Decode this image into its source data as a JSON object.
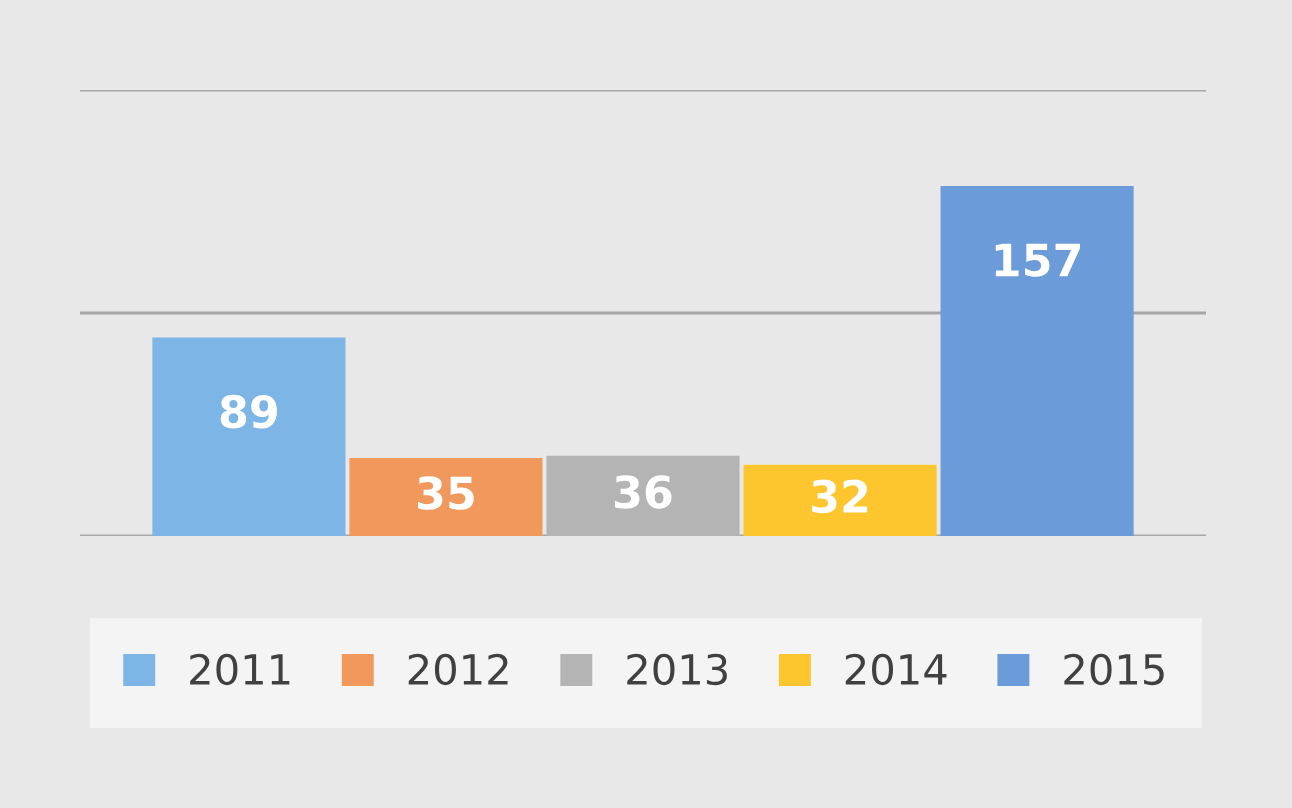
{
  "chart_data": {
    "type": "bar",
    "categories": [
      null
    ],
    "series": [
      {
        "name": "2011",
        "color": "#7cb5e6",
        "values": [
          89
        ]
      },
      {
        "name": "2012",
        "color": "#f1995d",
        "values": [
          35
        ]
      },
      {
        "name": "2013",
        "color": "#b4b4b4",
        "values": [
          36
        ]
      },
      {
        "name": "2014",
        "color": "#fdc62e",
        "values": [
          32
        ]
      },
      {
        "name": "2015",
        "color": "#6b9bd9",
        "values": [
          157
        ]
      }
    ],
    "ylim": [
      0,
      200
    ],
    "yticks": [
      {
        "value": 0,
        "label": null
      },
      {
        "value": 100,
        "label": null
      },
      {
        "value": 200,
        "label": null
      }
    ],
    "grid": "y",
    "data_labels": true,
    "legend": "bottom"
  }
}
